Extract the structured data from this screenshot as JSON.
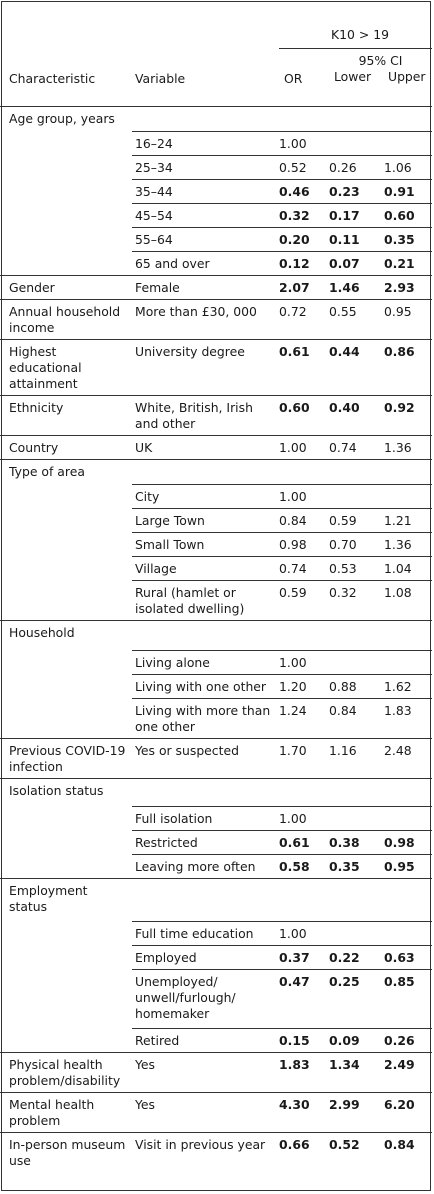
{
  "header": {
    "outcome": "K10 > 19",
    "ci_label": "95% CI",
    "col_characteristic": "Characteristic",
    "col_variable": "Variable",
    "col_or": "OR",
    "col_lower": "Lower",
    "col_upper": "Upper"
  },
  "rows": {
    "age": {
      "label": "Age group, years",
      "r0": {
        "v": "16–24",
        "or": "1.00",
        "lo": "",
        "up": ""
      },
      "r1": {
        "v": "25–34",
        "or": "0.52",
        "lo": "0.26",
        "up": "1.06"
      },
      "r2": {
        "v": "35–44",
        "or": "0.46",
        "lo": "0.23",
        "up": "0.91"
      },
      "r3": {
        "v": "45–54",
        "or": "0.32",
        "lo": "0.17",
        "up": "0.60"
      },
      "r4": {
        "v": "55–64",
        "or": "0.20",
        "lo": "0.11",
        "up": "0.35"
      },
      "r5": {
        "v": "65 and over",
        "or": "0.12",
        "lo": "0.07",
        "up": "0.21"
      }
    },
    "gender": {
      "c": "Gender",
      "v": "Female",
      "or": "2.07",
      "lo": "1.46",
      "up": "2.93"
    },
    "income": {
      "c": "Annual household income",
      "v": "More than £30, 000",
      "or": "0.72",
      "lo": "0.55",
      "up": "0.95"
    },
    "education": {
      "c": "Highest educational attainment",
      "v": "University degree",
      "or": "0.61",
      "lo": "0.44",
      "up": "0.86"
    },
    "ethnicity": {
      "c": "Ethnicity",
      "v": "White, British, Irish and other",
      "or": "0.60",
      "lo": "0.40",
      "up": "0.92"
    },
    "country": {
      "c": "Country",
      "v": "UK",
      "or": "1.00",
      "lo": "0.74",
      "up": "1.36"
    },
    "area": {
      "label": "Type of area",
      "r0": {
        "v": "City",
        "or": "1.00",
        "lo": "",
        "up": ""
      },
      "r1": {
        "v": "Large Town",
        "or": "0.84",
        "lo": "0.59",
        "up": "1.21"
      },
      "r2": {
        "v": "Small Town",
        "or": "0.98",
        "lo": "0.70",
        "up": "1.36"
      },
      "r3": {
        "v": "Village",
        "or": "0.74",
        "lo": "0.53",
        "up": "1.04"
      },
      "r4": {
        "v": "Rural (hamlet or isolated dwelling)",
        "or": "0.59",
        "lo": "0.32",
        "up": "1.08"
      }
    },
    "household": {
      "label": "Household",
      "r0": {
        "v": "Living alone",
        "or": "1.00",
        "lo": "",
        "up": ""
      },
      "r1": {
        "v": "Living with one other",
        "or": "1.20",
        "lo": "0.88",
        "up": "1.62"
      },
      "r2": {
        "v": "Living with more than one other",
        "or": "1.24",
        "lo": "0.84",
        "up": "1.83"
      }
    },
    "covid": {
      "c": "Previous COVID-19 infection",
      "v": "Yes or suspected",
      "or": "1.70",
      "lo": "1.16",
      "up": "2.48"
    },
    "isolation": {
      "label": "Isolation status",
      "r0": {
        "v": "Full isolation",
        "or": "1.00",
        "lo": "",
        "up": ""
      },
      "r1": {
        "v": "Restricted",
        "or": "0.61",
        "lo": "0.38",
        "up": "0.98"
      },
      "r2": {
        "v": "Leaving more often",
        "or": "0.58",
        "lo": "0.35",
        "up": "0.95"
      }
    },
    "employment": {
      "label": "Employment status",
      "r0": {
        "v": "Full time education",
        "or": "1.00",
        "lo": "",
        "up": ""
      },
      "r1": {
        "v": "Employed",
        "or": "0.37",
        "lo": "0.22",
        "up": "0.63"
      },
      "r2": {
        "v": "Unemployed/ unwell/furlough/ homemaker",
        "or": "0.47",
        "lo": "0.25",
        "up": "0.85"
      },
      "r3": {
        "v": "Retired",
        "or": "0.15",
        "lo": "0.09",
        "up": "0.26"
      }
    },
    "physical": {
      "c": "Physical health problem/disability",
      "v": "Yes",
      "or": "1.83",
      "lo": "1.34",
      "up": "2.49"
    },
    "mental": {
      "c": "Mental health problem",
      "v": "Yes",
      "or": "4.30",
      "lo": "2.99",
      "up": "6.20"
    },
    "museum": {
      "c": "In-person museum use",
      "v": "Visit in previous year",
      "or": "0.66",
      "lo": "0.52",
      "up": "0.84"
    }
  }
}
